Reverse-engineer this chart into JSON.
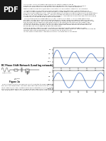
{
  "title": "Wien Bridge Oscillator:",
  "subtitle": "RC Phase Shift Network (Lead Lag Network)",
  "bg_color": "#ffffff",
  "pdf_label": "PDF",
  "body_text_lines": [
    "An oscillator is a circuit that produces periodic electric signals such as",
    "sine waves. Oscillators are circuits that produced periodic waveforms without any input",
    "signal from some form of active devices like transistors or OP-Amps as amplifiers",
    "together with energy-storing/dynamic elements such as resistors, capacitors, or inductors.",
    "",
    "The Wien Bridge is one of the simplest and best-known oscillators and is used extensively in",
    "circuits for audio frequency sine wave oscillation of high stability and simplicity. The Wien Bridge",
    "Oscillators is an active oscillator. The circuit is based on RC phase shifting network and The Wheatstone",
    "bridge circuit (Wien-Bridge network). The Wien Bridge oscillator is a non-bridge RC coupled amplifier",
    "circuit that has good stability at its resonant frequency, low-distortion and is very easy to tune making",
    "it a popular circuit use as audio frequency oscillator.",
    "",
    "There are two biasing configurations oscillator using 741 op-amp IC. The op-amp used in this",
    "oscillator circuit is working in non-inverting amplifier mode. Here the feedback network need not",
    "provide any phase shift. The circuit can be treated as a wien bridge with a series RC network in one",
    "arm and parallel RC network in the adjoining arm. Resistors R1n and R2 are connected in the",
    "remaining two arms. The Wien Bridge oscillator uses a feedback circuit consisting of a series RC",
    "circuit connected with a parallel RC of the same component values producing a phase delay of",
    "phase advance circuit depending upon the frequency.",
    "",
    "Figure 1a shows feedback bridge circuit which is used for the basic Wien Bridge circuit is",
    "connected between the amplifier input terminals and the output terminal. This bridge has a series RC",
    "network with a grounded parallel RC connected in an adjacent arm.",
    "At the resonant frequency f, the phase shift is 0. Consider the circuit below.",
    "RC Phase Shift Network (Lead lag network):"
  ],
  "section_label": "RC Phase Shift Network (Lead lag network):",
  "fig1a_label": "Figure 1a",
  "fig1b_label": "Figure 1b",
  "fig1a_caption": "The RC network consists of a series RC circuit connected to a parallel RC forming basically a High Pass Filter connected to a Low Pass Filter producing a very selective second-order frequency dependent Band Pass Filter with a high Q factor at the resonant frequency (f). At low frequencies the circuit acts like a \"band circuit\": the resistance of the series capacitor (C1) is very high so acts as an open circuit, blocking any input signal on Vin, resulting in virtually no output signal. Well, Likewise, at high frequencies, circuit acts as a \"lag circuit\": the resistance of the parallel capacitor, (C2) becomes very low, as the parallel connected capacitor acts and likes a short circuit across the",
  "wave_color_top": "#4472C4",
  "wave_color_bottom": "#4472C4",
  "wave_color_output": "#FF0000"
}
